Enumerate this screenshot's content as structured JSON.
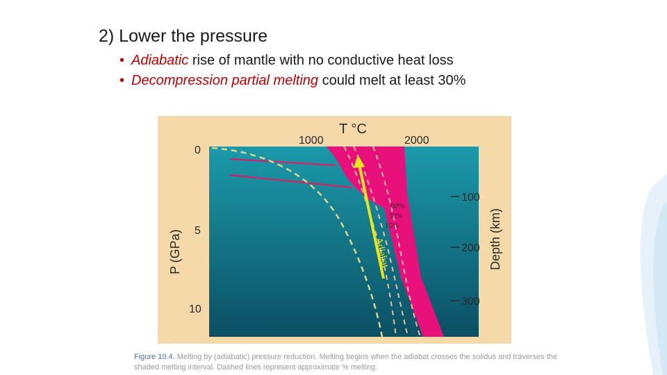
{
  "heading": "2)  Lower the pressure",
  "bullets": [
    {
      "emph": "Adiabatic",
      "rest": " rise of mantle with no conductive heat loss"
    },
    {
      "emph": "Decompression partial melting",
      "rest": " could melt at least 30%"
    }
  ],
  "figure": {
    "top_axis_title": "T °C",
    "top_ticks": [
      "1000",
      "2000"
    ],
    "left_axis_title": "P (GPa)",
    "left_ticks": [
      "0",
      "5",
      "10"
    ],
    "right_axis_title": "Depth (km)",
    "right_ticks": [
      "100",
      "200",
      "300"
    ],
    "melt_percent_labels": [
      "60%",
      "30%",
      "15%"
    ],
    "adiabat_label": "Adiabat",
    "colors": {
      "background": "#f5d9a8",
      "mantle_top": "#1b9aaa",
      "mantle_bottom": "#0b4f63",
      "melting_interval": "#e8117c",
      "adiabat": "#e6e619",
      "dashed_melt_lines": "#d8d88a"
    }
  },
  "caption": {
    "label": "Figure 10.4.",
    "text": " Melting by (adiabatic) pressure reduction. Melting begins when the adiabat crosses the solidus and traverses the shaded melting interval. Dashed lines represent approximate % melting."
  }
}
